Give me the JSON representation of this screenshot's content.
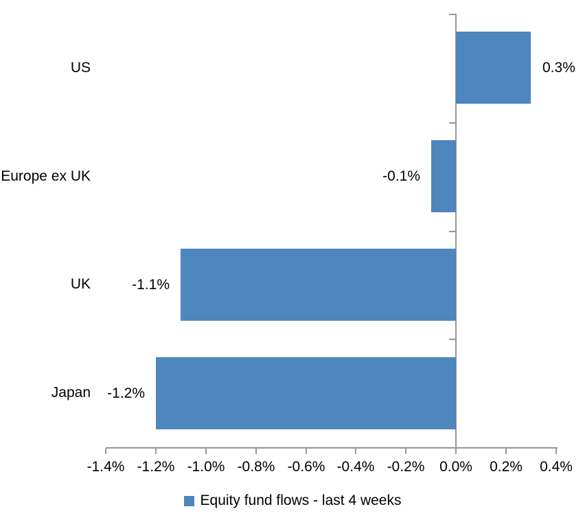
{
  "chart_data": {
    "type": "bar",
    "orientation": "horizontal",
    "title": "",
    "xlabel": "",
    "ylabel": "",
    "categories": [
      "US",
      "Europe ex UK",
      "UK",
      "Japan"
    ],
    "values": [
      0.3,
      -0.1,
      -1.1,
      -1.2
    ],
    "value_labels": [
      "0.3%",
      "-0.1%",
      "-1.1%",
      "-1.2%"
    ],
    "series_name": "Equity fund flows - last 4 weeks",
    "xlim": [
      -1.4,
      0.4
    ],
    "tick_step": 0.2,
    "x_tick_labels": [
      "-1.4%",
      "-1.2%",
      "-1.0%",
      "-0.8%",
      "-0.6%",
      "-0.4%",
      "-0.2%",
      "0.0%",
      "0.2%",
      "0.4%"
    ],
    "grid": false,
    "legend_position": "bottom",
    "colors": {
      "bar": "#4E86BE",
      "axis": "#979797",
      "text": "#000000",
      "background": "#FFFFFF"
    }
  }
}
